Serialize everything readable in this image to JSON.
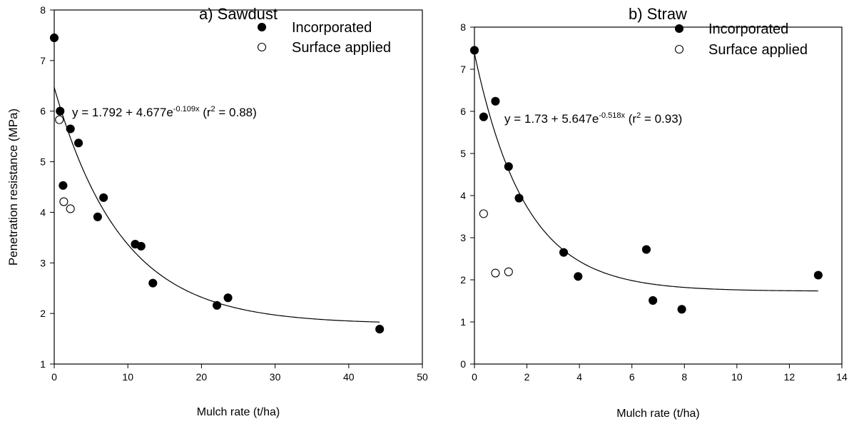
{
  "chart_data": [
    {
      "type": "scatter",
      "title": "a) Sawdust",
      "xlabel": "Mulch rate (t/ha)",
      "ylabel": "Penetration resistance (MPa)",
      "xlim": [
        0,
        50
      ],
      "ylim": [
        1,
        8
      ],
      "xticks": [
        "0",
        "10",
        "20",
        "30",
        "40",
        "50"
      ],
      "yticks": [
        "1",
        "2",
        "3",
        "4",
        "5",
        "6",
        "7",
        "8"
      ],
      "grid": false,
      "legend_position": "top-right",
      "series": [
        {
          "name": "Incorporated",
          "marker": "filled-circle",
          "points": [
            [
              0,
              7.45
            ],
            [
              0.8,
              6.0
            ],
            [
              1.2,
              4.53
            ],
            [
              2.2,
              5.65
            ],
            [
              3.3,
              5.37
            ],
            [
              5.9,
              3.91
            ],
            [
              6.7,
              4.29
            ],
            [
              11.0,
              3.37
            ],
            [
              11.8,
              3.33
            ],
            [
              13.4,
              2.6
            ],
            [
              22.1,
              2.16
            ],
            [
              23.6,
              2.31
            ],
            [
              44.2,
              1.69
            ]
          ]
        },
        {
          "name": "Surface applied",
          "marker": "open-circle",
          "points": [
            [
              0.7,
              5.83
            ],
            [
              1.3,
              4.21
            ],
            [
              2.2,
              4.07
            ]
          ]
        }
      ],
      "fit": {
        "a": 1.792,
        "b": 4.677,
        "k": 0.109,
        "x_range": [
          0,
          44.2
        ]
      },
      "annotation": {
        "prefix": "y = 1.792 + 4.677e",
        "exponent": "-0.109x",
        "r2_open": " (r",
        "r2_sup": "2",
        "r2_close": " = 0.88)"
      }
    },
    {
      "type": "scatter",
      "title": "b) Straw",
      "xlabel": "Mulch rate (t/ha)",
      "ylabel": "",
      "xlim": [
        0,
        14
      ],
      "ylim": [
        0,
        8
      ],
      "xticks": [
        "0",
        "2",
        "4",
        "6",
        "8",
        "10",
        "12",
        "14"
      ],
      "yticks": [
        "0",
        "1",
        "2",
        "3",
        "4",
        "5",
        "6",
        "7",
        "8"
      ],
      "grid": false,
      "legend_position": "top-right",
      "series": [
        {
          "name": "Incorporated",
          "marker": "filled-circle",
          "points": [
            [
              0,
              7.45
            ],
            [
              0.35,
              5.87
            ],
            [
              0.8,
              6.24
            ],
            [
              1.3,
              4.69
            ],
            [
              1.7,
              3.94
            ],
            [
              3.4,
              2.65
            ],
            [
              3.95,
              2.08
            ],
            [
              6.55,
              2.72
            ],
            [
              6.8,
              1.51
            ],
            [
              7.9,
              1.3
            ],
            [
              13.1,
              2.11
            ]
          ]
        },
        {
          "name": "Surface applied",
          "marker": "open-circle",
          "points": [
            [
              0.35,
              3.57
            ],
            [
              0.8,
              2.16
            ],
            [
              1.3,
              2.19
            ]
          ]
        }
      ],
      "fit": {
        "a": 1.73,
        "b": 5.647,
        "k": 0.518,
        "x_range": [
          0,
          13.1
        ]
      },
      "annotation": {
        "prefix": "y = 1.73 + 5.647e",
        "exponent": "-0.518x",
        "r2_open": " (r",
        "r2_sup": "2",
        "r2_close": " = 0.93)"
      }
    }
  ]
}
